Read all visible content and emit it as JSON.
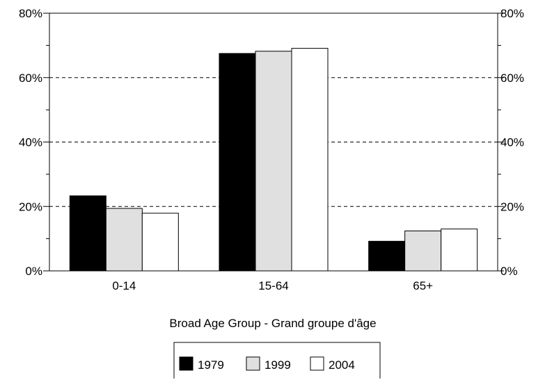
{
  "chart_data": {
    "type": "bar",
    "title": "",
    "xlabel": "Broad Age Group - Grand groupe d'âge",
    "ylabel": "",
    "categories": [
      "0-14",
      "15-64",
      "65+"
    ],
    "series": [
      {
        "name": "1979",
        "values": [
          23.3,
          67.5,
          9.2
        ],
        "color": "#000000"
      },
      {
        "name": "1999",
        "values": [
          19.4,
          68.2,
          12.4
        ],
        "color": "#e0e0e0"
      },
      {
        "name": "2004",
        "values": [
          17.9,
          69.1,
          13.0
        ],
        "color": "#ffffff"
      }
    ],
    "ylim": [
      0,
      80
    ],
    "yticks": [
      0,
      20,
      40,
      60,
      80
    ],
    "ytick_labels": [
      "0%",
      "20%",
      "40%",
      "60%",
      "80%"
    ],
    "y_minor_step": 10,
    "grid": "dashed horizontal at major ticks",
    "secondary_y_axis": true,
    "legend_position": "bottom-center"
  }
}
